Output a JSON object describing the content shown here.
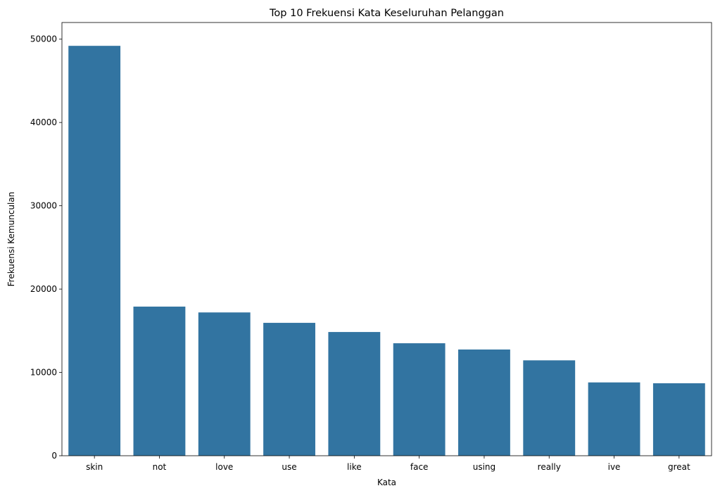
{
  "chart_data": {
    "type": "bar",
    "title": "Top 10 Frekuensi Kata Keseluruhan Pelanggan",
    "xlabel": "Kata",
    "ylabel": "Frekuensi Kemunculan",
    "categories": [
      "skin",
      "not",
      "love",
      "use",
      "like",
      "face",
      "using",
      "really",
      "ive",
      "great"
    ],
    "values": [
      49200,
      17900,
      17200,
      15950,
      14850,
      13500,
      12750,
      11450,
      8800,
      8700
    ],
    "ylim": [
      0,
      52000
    ],
    "yticks": [
      0,
      10000,
      20000,
      30000,
      40000,
      50000
    ],
    "ytick_labels": [
      "0",
      "10000",
      "20000",
      "30000",
      "40000",
      "50000"
    ],
    "bar_color": "#3274a1",
    "grid": false,
    "legend": "none"
  }
}
